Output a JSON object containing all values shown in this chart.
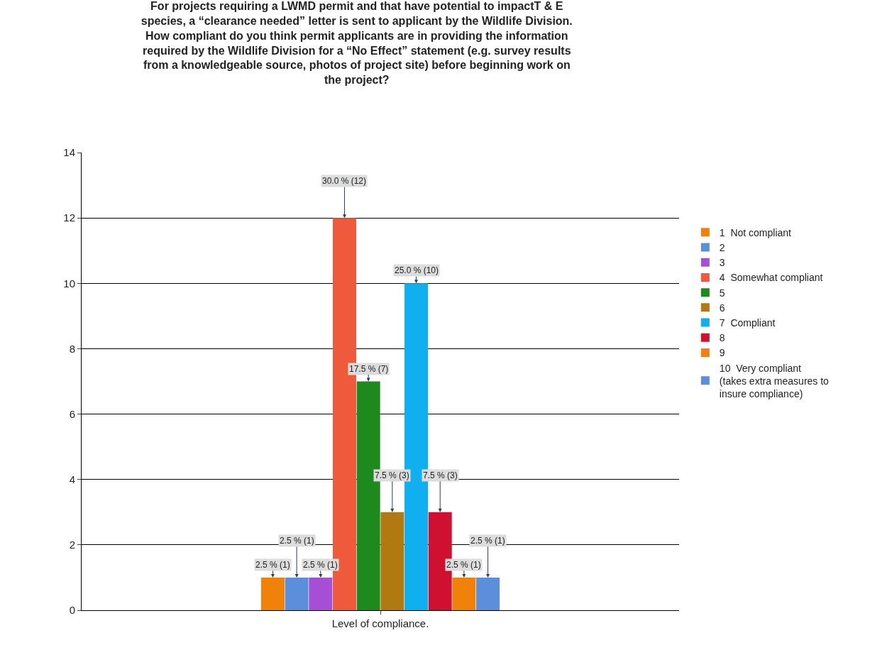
{
  "chart_data": {
    "type": "bar",
    "title": "For projects requiring a LWMD permit and that have potential to impactT & E\nspecies, a “clearance needed” letter is sent to applicant by the Wildlife Division.\nHow compliant do you think permit applicants are in providing the information\nrequired by the Wildlife Division for a “No Effect” statement (e.g. survey results\nfrom a knowledgeable source, photos of project site) before beginning work on\nthe project?",
    "categories": [
      "Level of compliance."
    ],
    "series": [
      {
        "name": "1  Not compliant",
        "color": "#f0820a",
        "values": [
          1
        ],
        "value_labels": [
          "2.5 % (1)"
        ]
      },
      {
        "name": "2",
        "color": "#5b8fdc",
        "values": [
          1
        ],
        "value_labels": [
          "2.5 % (1)"
        ]
      },
      {
        "name": "3",
        "color": "#a64fd6",
        "values": [
          1
        ],
        "value_labels": [
          "2.5 % (1)"
        ]
      },
      {
        "name": "4  Somewhat compliant",
        "color": "#f05a3c",
        "values": [
          12
        ],
        "value_labels": [
          "30.0 % (12)"
        ]
      },
      {
        "name": "5",
        "color": "#1e8a1e",
        "values": [
          7
        ],
        "value_labels": [
          "17.5 % (7)"
        ]
      },
      {
        "name": "6",
        "color": "#b07a10",
        "values": [
          3
        ],
        "value_labels": [
          "7.5 % (3)"
        ]
      },
      {
        "name": "7  Compliant",
        "color": "#10b0f0",
        "values": [
          10
        ],
        "value_labels": [
          "25.0 % (10)"
        ]
      },
      {
        "name": "8",
        "color": "#d01030",
        "values": [
          3
        ],
        "value_labels": [
          "7.5 % (3)"
        ]
      },
      {
        "name": "9",
        "color": "#f0820a",
        "values": [
          1
        ],
        "value_labels": [
          "2.5 % (1)"
        ]
      },
      {
        "name": "10  Very compliant (takes extra measures to insure compliance)",
        "color": "#5b8fdc",
        "values": [
          1
        ],
        "value_labels": [
          "2.5 % (1)"
        ]
      }
    ],
    "ylim": [
      0,
      14
    ],
    "yticks": [
      0,
      2,
      4,
      6,
      8,
      10,
      12,
      14
    ],
    "grid": "y",
    "legend": "right"
  }
}
